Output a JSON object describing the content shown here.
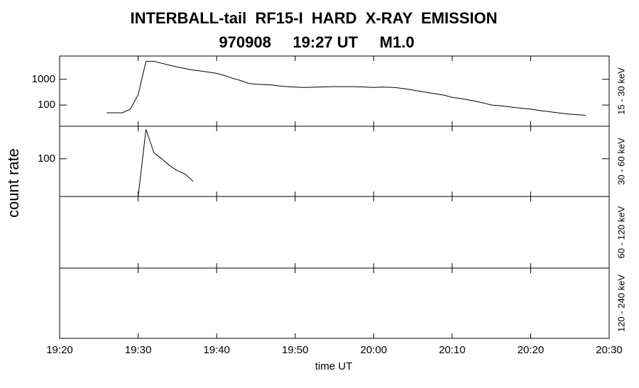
{
  "chart_data": {
    "type": "line",
    "title": "INTERBALL-tail  RF15-I  HARD  X-RAY  EMISSION",
    "subtitle": "970908     19:27 UT     M1.0",
    "x_label": "time UT",
    "y_label": "count rate",
    "color": "#000000",
    "xlim": [
      "19:20",
      "20:30"
    ],
    "xticks": [
      "19:20",
      "19:30",
      "19:40",
      "19:50",
      "20:00",
      "20:10",
      "20:20",
      "20:30"
    ],
    "panels": [
      {
        "label": "15 - 30 keV",
        "log_scale": true,
        "ylim": [
          15,
          8000
        ],
        "yticks": [
          100,
          1000
        ],
        "x": [
          "19:26",
          "19:27",
          "19:28",
          "19:29",
          "19:30",
          "19:31",
          "19:32",
          "19:33",
          "19:34",
          "19:35",
          "19:36",
          "19:37",
          "19:38",
          "19:39",
          "19:40",
          "19:41",
          "19:42",
          "19:43",
          "19:44",
          "19:45",
          "19:46",
          "19:47",
          "19:48",
          "19:49",
          "19:50",
          "19:51",
          "19:52",
          "19:53",
          "19:54",
          "19:55",
          "19:56",
          "19:57",
          "19:58",
          "19:59",
          "20:00",
          "20:01",
          "20:02",
          "20:03",
          "20:04",
          "20:05",
          "20:06",
          "20:07",
          "20:08",
          "20:09",
          "20:10",
          "20:11",
          "20:12",
          "20:13",
          "20:14",
          "20:15",
          "20:16",
          "20:17",
          "20:18",
          "20:19",
          "20:20",
          "20:21",
          "20:22",
          "20:23",
          "20:24",
          "20:25",
          "20:26",
          "20:27"
        ],
        "values": [
          50,
          50,
          50,
          70,
          250,
          5000,
          5000,
          4200,
          3500,
          3000,
          2600,
          2300,
          2100,
          1900,
          1700,
          1400,
          1100,
          900,
          700,
          640,
          620,
          600,
          550,
          520,
          500,
          480,
          490,
          500,
          510,
          520,
          520,
          520,
          510,
          500,
          480,
          500,
          490,
          470,
          430,
          380,
          340,
          300,
          270,
          240,
          200,
          180,
          160,
          140,
          120,
          100,
          95,
          88,
          80,
          74,
          70,
          62,
          57,
          52,
          48,
          44,
          42,
          40
        ]
      },
      {
        "label": "30 - 60 keV",
        "log_scale": true,
        "ylim": [
          20,
          400
        ],
        "yticks": [
          100
        ],
        "x": [
          "19:30",
          "19:31",
          "19:32",
          "19:33",
          "19:34",
          "19:35",
          "19:36",
          "19:37"
        ],
        "values": [
          20,
          350,
          130,
          100,
          75,
          60,
          52,
          38
        ]
      },
      {
        "label": "60 - 120 keV"
      },
      {
        "label": "120 - 240 keV"
      }
    ]
  }
}
